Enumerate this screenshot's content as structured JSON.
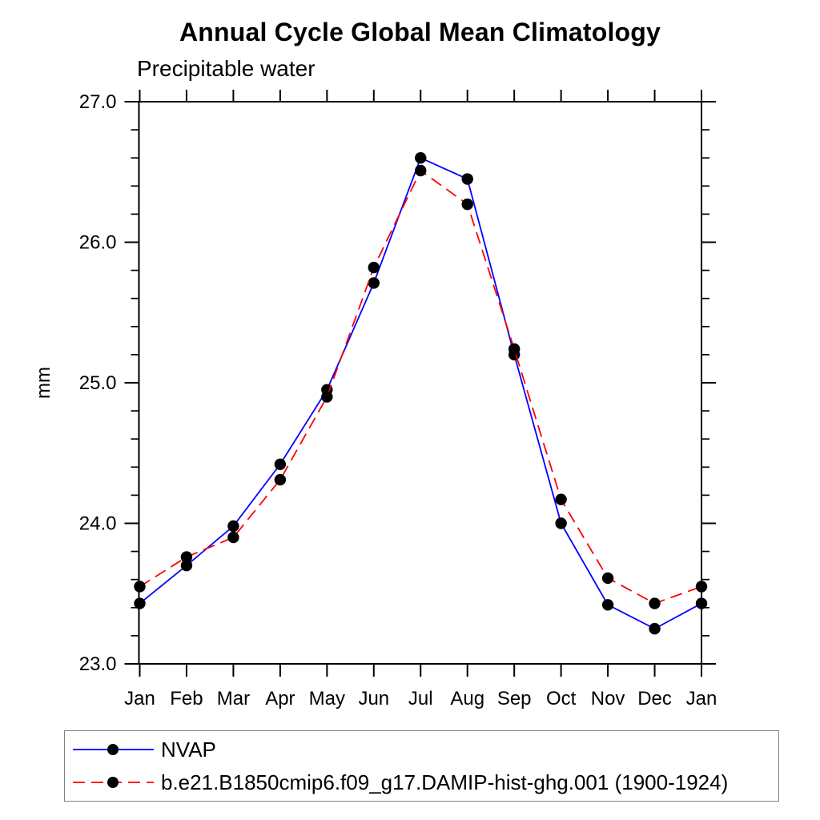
{
  "title": "Annual Cycle Global Mean Climatology",
  "subtitle": "Precipitable water",
  "chart_data": {
    "type": "line",
    "title": "Annual Cycle Global Mean Climatology",
    "subtitle": "Precipitable water",
    "xlabel": "",
    "ylabel": "mm",
    "x": [
      "Jan",
      "Feb",
      "Mar",
      "Apr",
      "May",
      "Jun",
      "Jul",
      "Aug",
      "Sep",
      "Oct",
      "Nov",
      "Dec",
      "Jan"
    ],
    "ylim": [
      23.0,
      27.0
    ],
    "ytick_labels": [
      "23.0",
      "24.0",
      "25.0",
      "26.0",
      "27.0"
    ],
    "ytick_major": [
      23.0,
      24.0,
      25.0,
      26.0,
      27.0
    ],
    "ytick_minor_step": 0.2,
    "grid": "off",
    "legend_position": "bottom-left-box",
    "marker": "filled-black-circle",
    "series": [
      {
        "name": "NVAP",
        "color": "#0000ff",
        "style": "solid",
        "values": [
          23.43,
          23.7,
          23.98,
          24.42,
          24.95,
          25.71,
          26.6,
          26.45,
          25.2,
          24.0,
          23.42,
          23.25,
          23.43
        ]
      },
      {
        "name": "b.e21.B1850cmip6.f09_g17.DAMIP-hist-ghg.001 (1900-1924)",
        "color": "#ff0000",
        "style": "dashed",
        "values": [
          23.55,
          23.76,
          23.9,
          24.31,
          24.9,
          25.82,
          26.51,
          26.27,
          25.24,
          24.17,
          23.61,
          23.43,
          23.55
        ]
      }
    ]
  },
  "colors": {
    "axis": "#000000",
    "marker": "#000000",
    "legend_border": "#808080",
    "background": "#ffffff"
  }
}
